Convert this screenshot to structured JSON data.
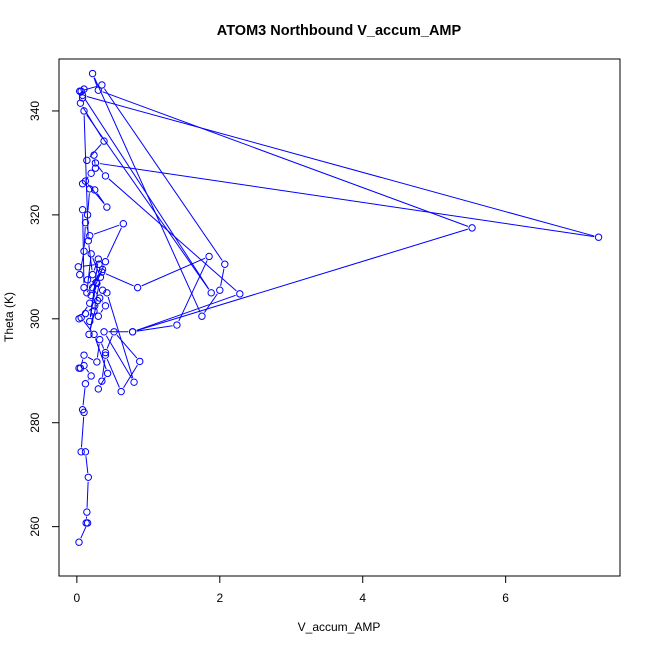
{
  "chart_data": {
    "type": "line",
    "title": "ATOM3 Northbound V_accum_AMP",
    "xlabel": "V_accum_AMP",
    "ylabel": "Theta (K)",
    "xlim": [
      -0.25,
      7.6
    ],
    "ylim": [
      250.5,
      350
    ],
    "x_ticks": [
      0,
      2,
      4,
      6
    ],
    "y_ticks": [
      260,
      280,
      300,
      320,
      340
    ],
    "grid": false,
    "legend": "none",
    "markers": "open-circle",
    "series": [
      {
        "color": "#0000ff",
        "points": [
          [
            0.03,
            257.0
          ],
          [
            0.15,
            260.7
          ],
          [
            0.13,
            260.7
          ],
          [
            0.14,
            262.8
          ],
          [
            0.16,
            269.5
          ],
          [
            0.12,
            274.4
          ],
          [
            0.06,
            274.4
          ],
          [
            0.1,
            282.0
          ],
          [
            0.08,
            282.5
          ],
          [
            0.12,
            287.5
          ],
          [
            0.2,
            289.0
          ],
          [
            0.1,
            291.0
          ],
          [
            0.03,
            290.5
          ],
          [
            0.05,
            290.5
          ],
          [
            0.1,
            293.0
          ],
          [
            0.28,
            291.7
          ],
          [
            0.32,
            296.0
          ],
          [
            0.4,
            293.5
          ],
          [
            0.52,
            297.5
          ],
          [
            0.88,
            291.8
          ],
          [
            0.62,
            286.0
          ],
          [
            0.4,
            293.0
          ],
          [
            0.35,
            288.0
          ],
          [
            0.3,
            286.5
          ],
          [
            0.43,
            289.5
          ],
          [
            0.24,
            297.0
          ],
          [
            0.06,
            300.2
          ],
          [
            0.03,
            300.0
          ],
          [
            0.18,
            303.0
          ],
          [
            0.25,
            302.5
          ],
          [
            0.12,
            301.0
          ],
          [
            0.3,
            300.5
          ],
          [
            0.4,
            302.5
          ],
          [
            0.32,
            304.0
          ],
          [
            0.22,
            306.0
          ],
          [
            0.15,
            307.5
          ],
          [
            0.28,
            306.8
          ],
          [
            0.36,
            305.5
          ],
          [
            0.42,
            305.0
          ],
          [
            0.8,
            287.8
          ],
          [
            0.38,
            297.5
          ],
          [
            0.78,
            297.5
          ],
          [
            1.4,
            298.8
          ],
          [
            1.85,
            312.0
          ],
          [
            0.85,
            306.0
          ],
          [
            0.35,
            309.0
          ],
          [
            0.31,
            310.5
          ],
          [
            0.02,
            310.0
          ],
          [
            0.04,
            308.5
          ],
          [
            0.1,
            313.0
          ],
          [
            0.12,
            318.5
          ],
          [
            0.18,
            316.0
          ],
          [
            0.65,
            318.3
          ],
          [
            0.4,
            311.0
          ],
          [
            0.2,
            304.5
          ],
          [
            0.1,
            306.0
          ],
          [
            0.08,
            321.0
          ],
          [
            0.15,
            320.0
          ],
          [
            0.18,
            325.0
          ],
          [
            0.25,
            324.8
          ],
          [
            0.42,
            321.5
          ],
          [
            0.12,
            326.5
          ],
          [
            0.08,
            326.0
          ],
          [
            0.2,
            328.0
          ],
          [
            0.26,
            329.0
          ],
          [
            0.24,
            331.5
          ],
          [
            0.14,
            330.5
          ],
          [
            0.38,
            334.2
          ],
          [
            0.05,
            341.5
          ],
          [
            0.08,
            342.5
          ],
          [
            0.06,
            343.8
          ],
          [
            0.1,
            344.2
          ],
          [
            0.04,
            343.8
          ],
          [
            0.35,
            345.0
          ],
          [
            2.07,
            310.5
          ],
          [
            2.0,
            305.5
          ],
          [
            1.75,
            300.5
          ],
          [
            0.22,
            347.2
          ],
          [
            0.3,
            344.0
          ],
          [
            5.53,
            317.5
          ],
          [
            0.78,
            297.5
          ],
          [
            2.28,
            304.8
          ],
          [
            0.4,
            327.5
          ],
          [
            0.26,
            330.0
          ],
          [
            7.3,
            315.7
          ],
          [
            0.08,
            343.0
          ],
          [
            1.88,
            305.0
          ],
          [
            0.1,
            340.0
          ],
          [
            0.16,
            315.0
          ],
          [
            0.22,
            308.5
          ],
          [
            0.3,
            311.5
          ],
          [
            0.18,
            299.5
          ],
          [
            0.27,
            307.0
          ],
          [
            0.36,
            309.5
          ],
          [
            0.14,
            305.0
          ],
          [
            0.2,
            312.5
          ],
          [
            0.33,
            308.0
          ],
          [
            0.24,
            301.5
          ],
          [
            0.17,
            297.0
          ],
          [
            0.29,
            303.5
          ]
        ]
      }
    ]
  }
}
